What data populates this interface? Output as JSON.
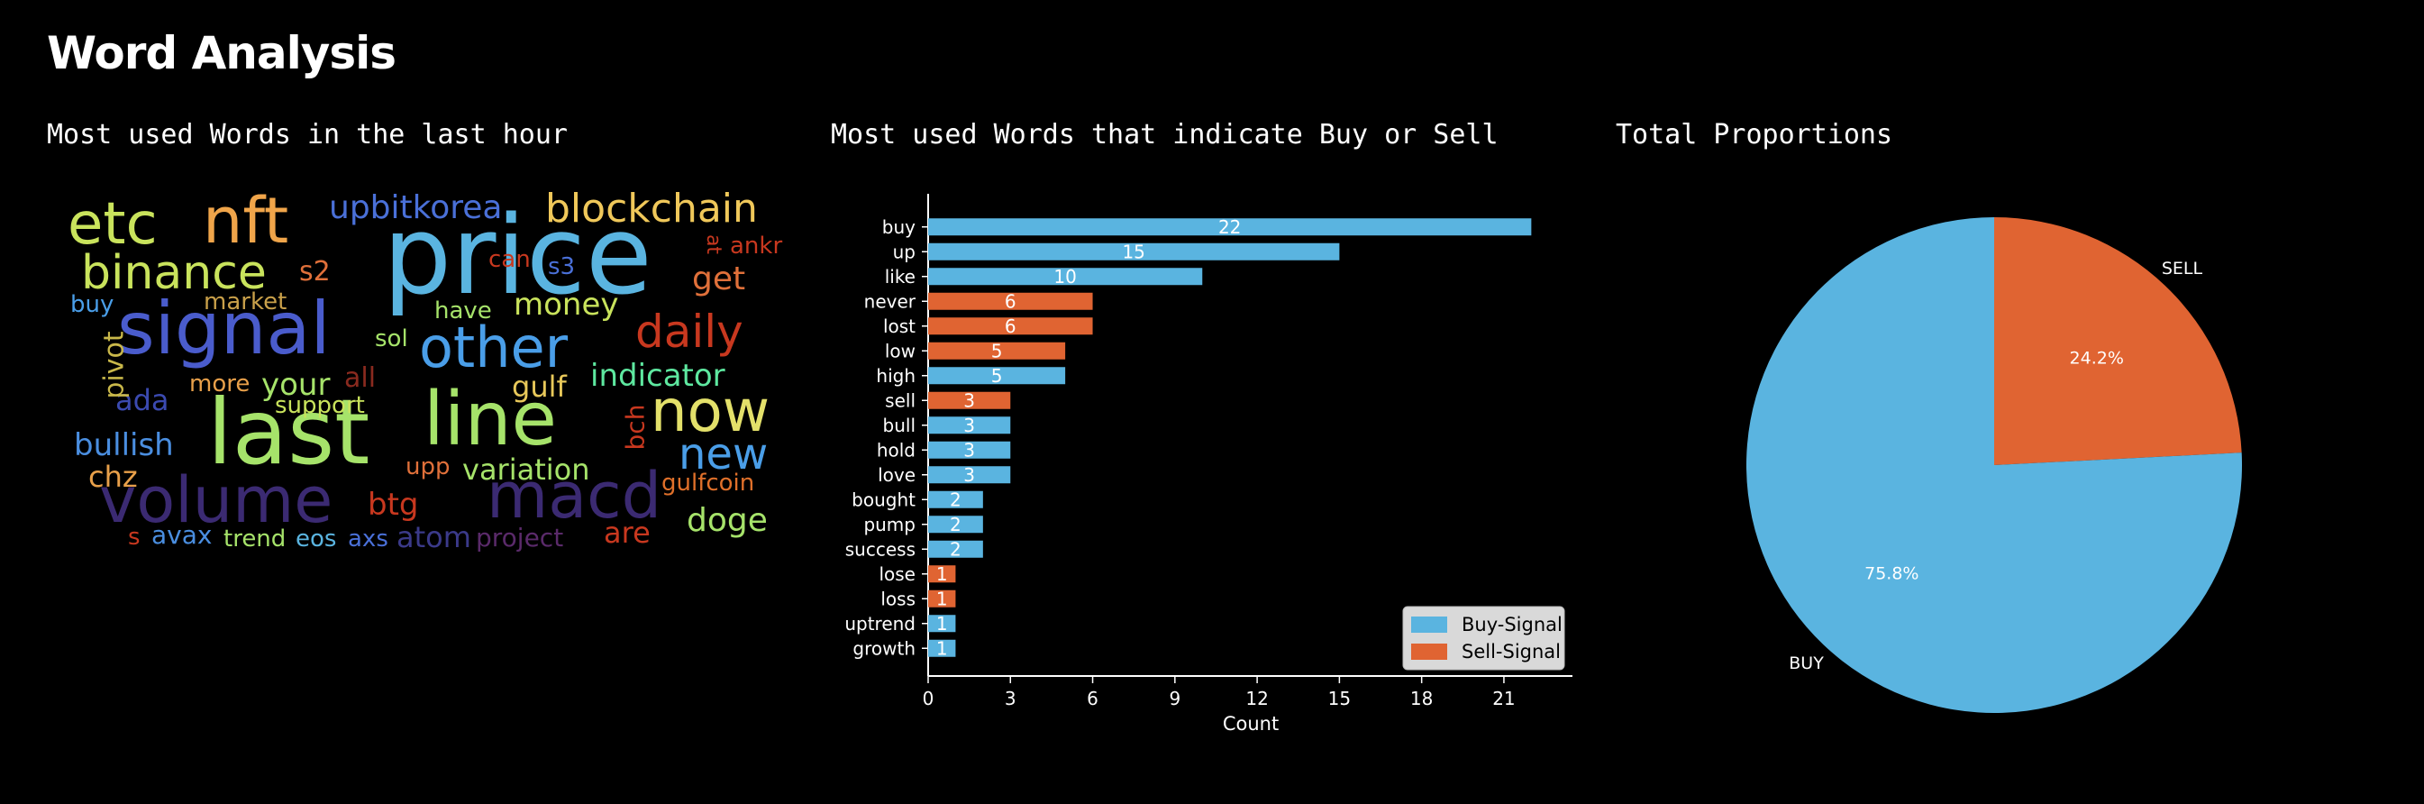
{
  "page": {
    "title": "Word Analysis"
  },
  "panels": {
    "wordcloud_title": "Most used Words in the last hour",
    "bar_title": "Most used Words that indicate Buy or Sell",
    "pie_title": "Total Proportions"
  },
  "colors": {
    "buy": "#5ab4e0",
    "sell": "#e06432",
    "background": "#000000",
    "text": "#ffffff"
  },
  "wordcloud": {
    "words": [
      {
        "text": "price",
        "color": "#5ab4e0"
      },
      {
        "text": "last",
        "color": "#a6e36a"
      },
      {
        "text": "signal",
        "color": "#4a5ccc"
      },
      {
        "text": "line",
        "color": "#a6e36a"
      },
      {
        "text": "macd",
        "color": "#3b2a72"
      },
      {
        "text": "volume",
        "color": "#3b2a72"
      },
      {
        "text": "nft",
        "color": "#f0a54a"
      },
      {
        "text": "etc",
        "color": "#c9e35c"
      },
      {
        "text": "other",
        "color": "#4a9ee8"
      },
      {
        "text": "now",
        "color": "#e3e06a"
      },
      {
        "text": "binance",
        "color": "#c9e35c"
      },
      {
        "text": "blockchain",
        "color": "#f0c85a"
      },
      {
        "text": "daily",
        "color": "#c8381f"
      },
      {
        "text": "new",
        "color": "#4a9ee8"
      },
      {
        "text": "upbitkorea",
        "color": "#4a70d8"
      },
      {
        "text": "indicator",
        "color": "#5ee8a0"
      },
      {
        "text": "bullish",
        "color": "#4a8ee0"
      },
      {
        "text": "variation",
        "color": "#a6e36a"
      },
      {
        "text": "doge",
        "color": "#a6e36a"
      },
      {
        "text": "money",
        "color": "#c9e35c"
      },
      {
        "text": "get",
        "color": "#e0703a"
      },
      {
        "text": "btg",
        "color": "#c8381f"
      },
      {
        "text": "atom",
        "color": "#3b3a8a"
      },
      {
        "text": "ada",
        "color": "#3b4ab0"
      },
      {
        "text": "your",
        "color": "#a6e36a"
      },
      {
        "text": "gulf",
        "color": "#e8c85a"
      },
      {
        "text": "are",
        "color": "#c8381f"
      },
      {
        "text": "chz",
        "color": "#e8a04a"
      },
      {
        "text": "pivot",
        "color": "#c9b84a"
      },
      {
        "text": "gulfcoin",
        "color": "#e0702a"
      },
      {
        "text": "all",
        "color": "#8a2a1f"
      },
      {
        "text": "s2",
        "color": "#e0703a"
      },
      {
        "text": "can",
        "color": "#c8381f"
      },
      {
        "text": "s3",
        "color": "#4a70d8"
      },
      {
        "text": "ankr",
        "color": "#c8381f"
      },
      {
        "text": "bch",
        "color": "#c8381f"
      },
      {
        "text": "upp",
        "color": "#e0703a"
      },
      {
        "text": "market",
        "color": "#c9a04a"
      },
      {
        "text": "have",
        "color": "#a6e36a"
      },
      {
        "text": "sol",
        "color": "#a6e36a"
      },
      {
        "text": "support",
        "color": "#c9e35c"
      },
      {
        "text": "more",
        "color": "#e8a04a"
      },
      {
        "text": "buy",
        "color": "#4a9ee8"
      },
      {
        "text": "avax",
        "color": "#4a8ee0"
      },
      {
        "text": "trend",
        "color": "#a6e36a"
      },
      {
        "text": "eos",
        "color": "#5ab4e0"
      },
      {
        "text": "axs",
        "color": "#4a70d8"
      },
      {
        "text": "project",
        "color": "#5a2a6a"
      },
      {
        "text": "s",
        "color": "#c8381f"
      },
      {
        "text": "at",
        "color": "#c8381f"
      }
    ]
  },
  "chart_data": [
    {
      "type": "bar",
      "orientation": "horizontal",
      "title": "Most used Words that indicate Buy or Sell",
      "categories": [
        "buy",
        "up",
        "like",
        "never",
        "lost",
        "low",
        "high",
        "sell",
        "bull",
        "hold",
        "love",
        "bought",
        "pump",
        "success",
        "lose",
        "loss",
        "uptrend",
        "growth"
      ],
      "values": [
        22,
        15,
        10,
        6,
        6,
        5,
        5,
        3,
        3,
        3,
        3,
        2,
        2,
        2,
        1,
        1,
        1,
        1
      ],
      "signal": [
        "Buy-Signal",
        "Buy-Signal",
        "Buy-Signal",
        "Sell-Signal",
        "Sell-Signal",
        "Sell-Signal",
        "Buy-Signal",
        "Sell-Signal",
        "Buy-Signal",
        "Buy-Signal",
        "Buy-Signal",
        "Buy-Signal",
        "Buy-Signal",
        "Buy-Signal",
        "Sell-Signal",
        "Sell-Signal",
        "Buy-Signal",
        "Buy-Signal"
      ],
      "xlabel": "Count",
      "ylabel": "",
      "xlim": [
        0,
        23.5
      ],
      "xticks": [
        0,
        3,
        6,
        9,
        12,
        15,
        18,
        21
      ],
      "legend": {
        "placement": "bottom-right",
        "entries": [
          {
            "label": "Buy-Signal",
            "color": "#5ab4e0"
          },
          {
            "label": "Sell-Signal",
            "color": "#e06432"
          }
        ]
      },
      "grid": false
    },
    {
      "type": "pie",
      "title": "Total Proportions",
      "labels": [
        "SELL",
        "BUY"
      ],
      "values": [
        24.2,
        75.8
      ],
      "value_labels": [
        "24.2%",
        "75.8%"
      ],
      "colors": [
        "#e06432",
        "#5ab4e0"
      ]
    }
  ]
}
